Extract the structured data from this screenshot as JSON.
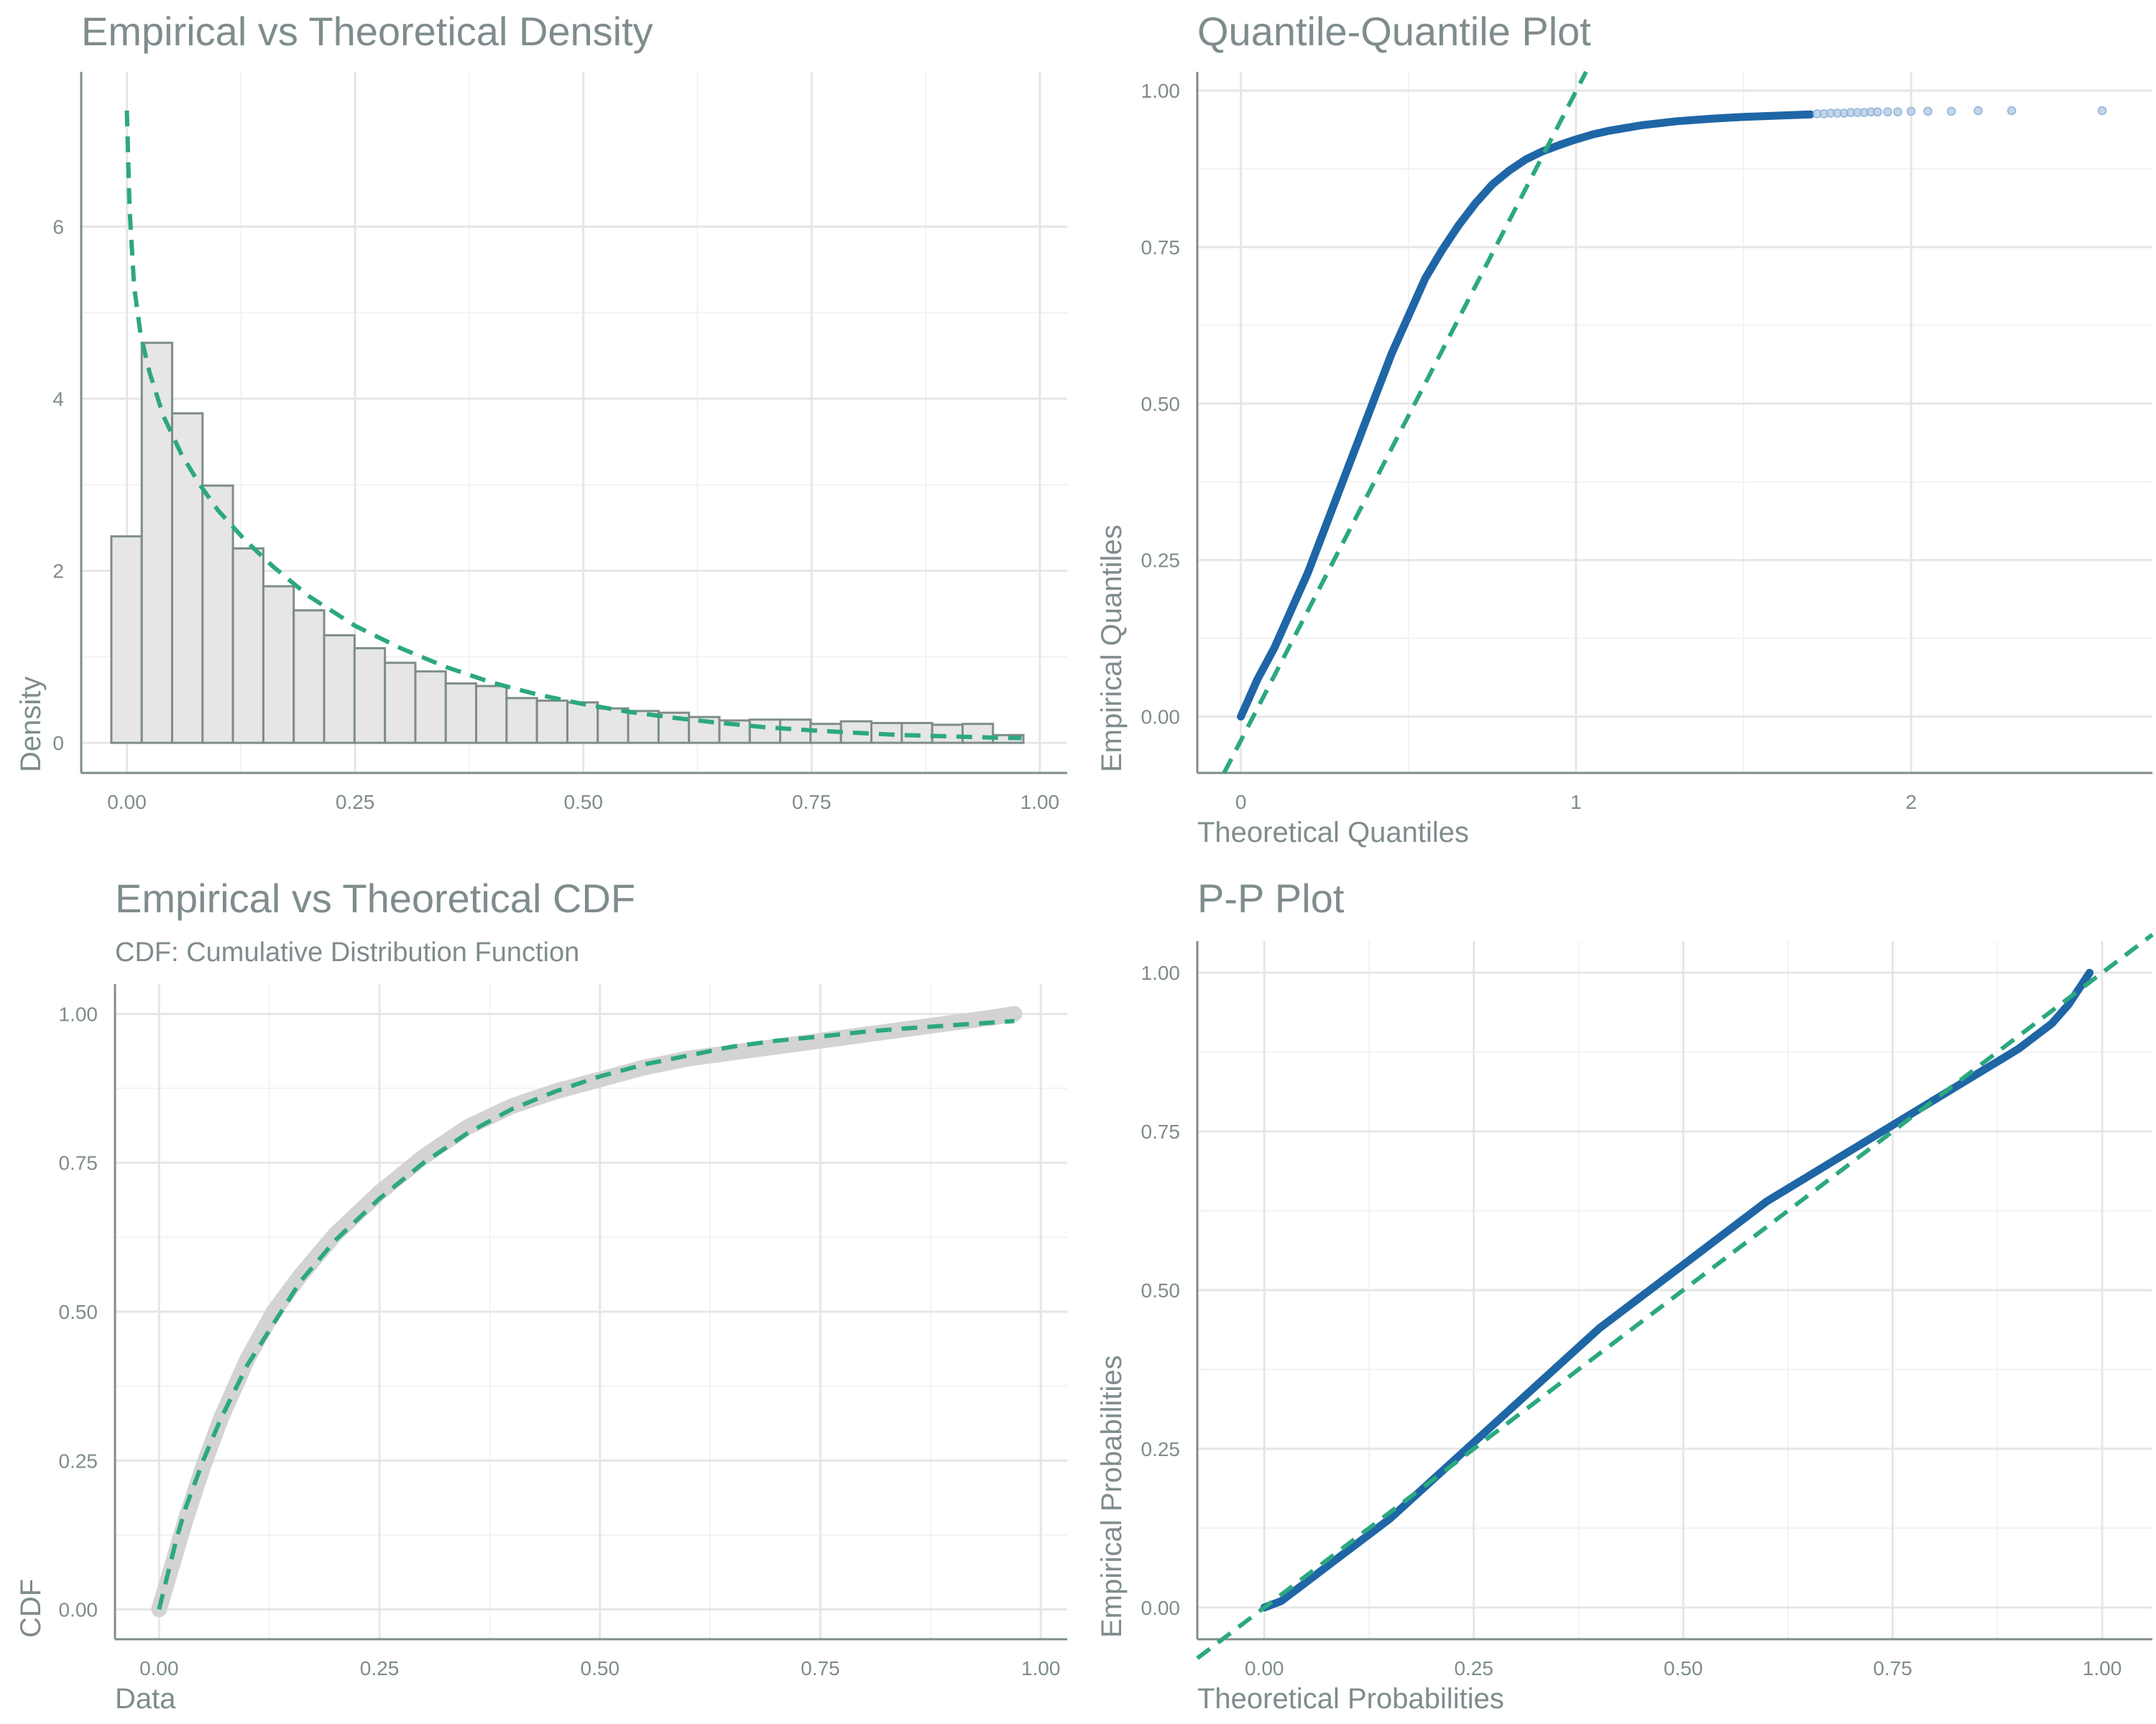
{
  "colors": {
    "text": "#7f8c8d",
    "fit": "#2ca87f",
    "empirical_blue": "#1f66a6",
    "empirical_gray": "#d3d3d3",
    "bar_fill": "#e6e6e6",
    "bar_edge": "#7f8c8d"
  },
  "chart_data": [
    {
      "id": "density",
      "type": "bar",
      "title": "Empirical vs Theoretical Density",
      "subtitle": "",
      "xlabel": "",
      "ylabel": "Density",
      "xlim": [
        -0.05,
        1.03
      ],
      "ylim": [
        -0.35,
        7.8
      ],
      "xticks": [
        0,
        0.25,
        0.5,
        0.75,
        1.0
      ],
      "xtick_labels": [
        "0.00",
        "0.25",
        "0.50",
        "0.75",
        "1.00"
      ],
      "yticks": [
        0,
        2,
        4,
        6
      ],
      "ytick_labels": [
        "0",
        "2",
        "4",
        "6"
      ],
      "grid": true,
      "bars": {
        "x_start": -0.017,
        "bin_width": 0.0333,
        "values": [
          2.4,
          4.65,
          3.83,
          2.99,
          2.26,
          1.82,
          1.54,
          1.25,
          1.1,
          0.93,
          0.83,
          0.69,
          0.66,
          0.52,
          0.49,
          0.47,
          0.4,
          0.37,
          0.35,
          0.3,
          0.26,
          0.27,
          0.27,
          0.22,
          0.25,
          0.23,
          0.23,
          0.21,
          0.22,
          0.09
        ]
      },
      "theoretical_line": {
        "x": [
          0.0,
          0.003,
          0.008,
          0.015,
          0.025,
          0.04,
          0.06,
          0.08,
          0.1,
          0.13,
          0.16,
          0.2,
          0.25,
          0.3,
          0.35,
          0.4,
          0.45,
          0.5,
          0.55,
          0.6,
          0.65,
          0.7,
          0.75,
          0.8,
          0.85,
          0.9,
          0.95,
          0.98
        ],
        "y": [
          7.35,
          6.2,
          5.3,
          4.75,
          4.3,
          3.8,
          3.35,
          3.0,
          2.7,
          2.35,
          2.05,
          1.7,
          1.36,
          1.1,
          0.88,
          0.7,
          0.56,
          0.45,
          0.36,
          0.29,
          0.23,
          0.18,
          0.145,
          0.115,
          0.09,
          0.075,
          0.06,
          0.055
        ]
      }
    },
    {
      "id": "qq",
      "type": "scatter",
      "title": "Quantile-Quantile Plot",
      "subtitle": "",
      "xlabel": "Theoretical Quantiles",
      "ylabel": "Empirical Quantiles",
      "xlim": [
        -0.13,
        2.72
      ],
      "ylim": [
        -0.09,
        1.03
      ],
      "xticks": [
        0,
        1,
        2
      ],
      "xtick_labels": [
        "0",
        "1",
        "2"
      ],
      "yticks": [
        0,
        0.25,
        0.5,
        0.75,
        1.0
      ],
      "ytick_labels": [
        "0.00",
        "0.25",
        "0.50",
        "0.75",
        "1.00"
      ],
      "grid": true,
      "empirical_curve": {
        "x": [
          0.0,
          0.05,
          0.1,
          0.15,
          0.2,
          0.25,
          0.3,
          0.35,
          0.4,
          0.45,
          0.5,
          0.55,
          0.6,
          0.65,
          0.7,
          0.75,
          0.8,
          0.85,
          0.9,
          0.95,
          1.0,
          1.05,
          1.1,
          1.2,
          1.3,
          1.4,
          1.5,
          1.6,
          1.7
        ],
        "y": [
          0.0,
          0.06,
          0.11,
          0.17,
          0.23,
          0.3,
          0.37,
          0.44,
          0.51,
          0.58,
          0.64,
          0.7,
          0.745,
          0.785,
          0.82,
          0.85,
          0.872,
          0.89,
          0.903,
          0.913,
          0.922,
          0.93,
          0.936,
          0.945,
          0.951,
          0.955,
          0.958,
          0.96,
          0.962
        ]
      },
      "tail_points": {
        "x": [
          1.72,
          1.74,
          1.76,
          1.78,
          1.8,
          1.82,
          1.84,
          1.86,
          1.88,
          1.9,
          1.93,
          1.96,
          2.0,
          2.05,
          2.12,
          2.2,
          2.3,
          2.57
        ],
        "y": [
          0.963,
          0.963,
          0.964,
          0.964,
          0.964,
          0.965,
          0.965,
          0.965,
          0.966,
          0.966,
          0.966,
          0.966,
          0.967,
          0.967,
          0.967,
          0.968,
          0.968,
          0.968
        ]
      },
      "reference_line": {
        "x": [
          -0.05,
          1.03
        ],
        "y": [
          -0.09,
          1.03
        ]
      }
    },
    {
      "id": "cdf",
      "type": "line",
      "title": "Empirical vs Theoretical CDF",
      "subtitle": "CDF: Cumulative Distribution Function",
      "xlabel": "Data",
      "ylabel": "CDF",
      "xlim": [
        -0.05,
        1.03
      ],
      "ylim": [
        -0.05,
        1.05
      ],
      "xticks": [
        0,
        0.25,
        0.5,
        0.75,
        1.0
      ],
      "xtick_labels": [
        "0.00",
        "0.25",
        "0.50",
        "0.75",
        "1.00"
      ],
      "yticks": [
        0,
        0.25,
        0.5,
        0.75,
        1.0
      ],
      "ytick_labels": [
        "0.00",
        "0.25",
        "0.50",
        "0.75",
        "1.00"
      ],
      "grid": true,
      "empirical_curve": {
        "x": [
          0.0,
          0.01,
          0.02,
          0.03,
          0.05,
          0.07,
          0.1,
          0.13,
          0.16,
          0.2,
          0.25,
          0.3,
          0.35,
          0.4,
          0.45,
          0.5,
          0.55,
          0.6,
          0.65,
          0.7,
          0.75,
          0.8,
          0.85,
          0.9,
          0.95,
          0.97
        ],
        "y": [
          0.0,
          0.05,
          0.1,
          0.15,
          0.24,
          0.32,
          0.42,
          0.5,
          0.56,
          0.63,
          0.7,
          0.76,
          0.81,
          0.845,
          0.87,
          0.89,
          0.91,
          0.925,
          0.935,
          0.945,
          0.955,
          0.965,
          0.975,
          0.985,
          0.995,
          1.0
        ]
      },
      "theoretical_line": {
        "x": [
          0.0,
          0.01,
          0.02,
          0.03,
          0.05,
          0.07,
          0.1,
          0.13,
          0.16,
          0.2,
          0.25,
          0.3,
          0.35,
          0.4,
          0.45,
          0.5,
          0.55,
          0.6,
          0.65,
          0.7,
          0.75,
          0.8,
          0.85,
          0.9,
          0.95,
          0.97
        ],
        "y": [
          0.0,
          0.06,
          0.12,
          0.17,
          0.25,
          0.32,
          0.41,
          0.48,
          0.55,
          0.62,
          0.69,
          0.75,
          0.8,
          0.84,
          0.87,
          0.895,
          0.915,
          0.93,
          0.945,
          0.955,
          0.962,
          0.97,
          0.976,
          0.981,
          0.986,
          0.988
        ]
      }
    },
    {
      "id": "pp",
      "type": "scatter",
      "title": "P-P Plot",
      "subtitle": "",
      "xlabel": "Theoretical Probabilities",
      "ylabel": "Empirical Probabilities",
      "xlim": [
        -0.08,
        1.06
      ],
      "ylim": [
        -0.05,
        1.05
      ],
      "xticks": [
        0,
        0.25,
        0.5,
        0.75,
        1.0
      ],
      "xtick_labels": [
        "0.00",
        "0.25",
        "0.50",
        "0.75",
        "1.00"
      ],
      "yticks": [
        0,
        0.25,
        0.5,
        0.75,
        1.0
      ],
      "ytick_labels": [
        "0.00",
        "0.25",
        "0.50",
        "0.75",
        "1.00"
      ],
      "grid": true,
      "empirical_curve": {
        "x": [
          0.0,
          0.02,
          0.05,
          0.1,
          0.15,
          0.2,
          0.25,
          0.3,
          0.35,
          0.4,
          0.45,
          0.5,
          0.55,
          0.6,
          0.65,
          0.7,
          0.75,
          0.8,
          0.85,
          0.9,
          0.94,
          0.96,
          0.975,
          0.985
        ],
        "y": [
          0.0,
          0.01,
          0.04,
          0.09,
          0.14,
          0.2,
          0.26,
          0.32,
          0.38,
          0.44,
          0.49,
          0.54,
          0.59,
          0.64,
          0.68,
          0.72,
          0.76,
          0.8,
          0.84,
          0.88,
          0.92,
          0.95,
          0.98,
          1.0
        ]
      },
      "reference_line": {
        "x": [
          -0.08,
          1.06
        ],
        "y": [
          -0.08,
          1.06
        ]
      }
    }
  ]
}
